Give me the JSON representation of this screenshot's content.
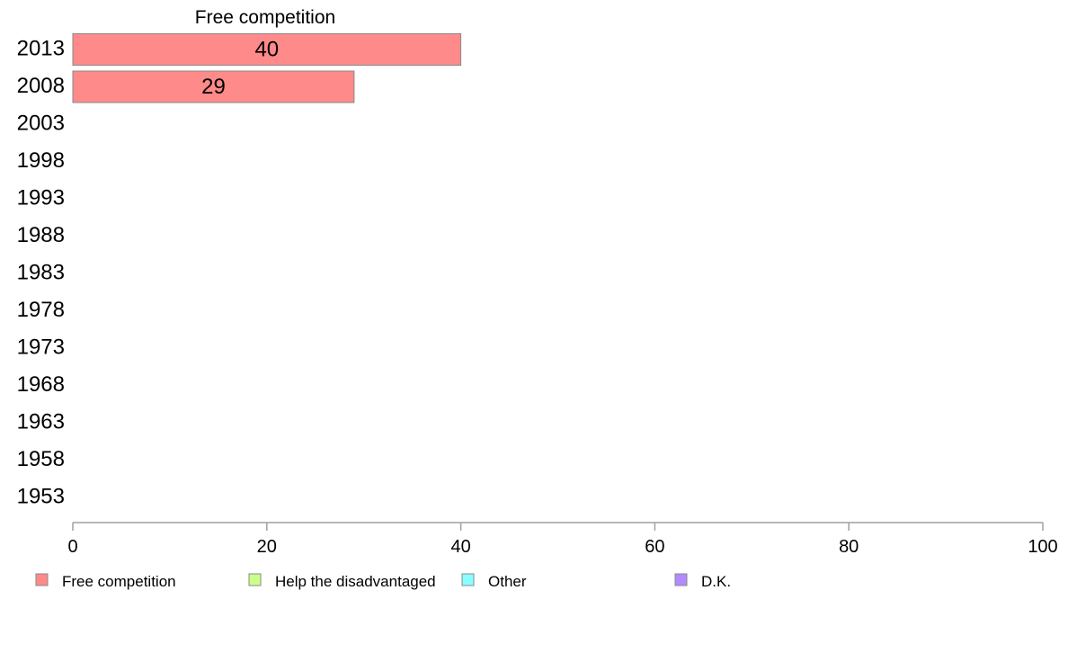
{
  "chart_data": {
    "type": "bar",
    "orientation": "horizontal",
    "title": "Free competition",
    "categories": [
      "2013",
      "2008",
      "2003",
      "1998",
      "1993",
      "1988",
      "1983",
      "1978",
      "1973",
      "1968",
      "1963",
      "1958",
      "1953"
    ],
    "series": [
      {
        "name": "Free competition",
        "color": "#ff8a8a",
        "values": [
          40,
          29,
          null,
          null,
          null,
          null,
          null,
          null,
          null,
          null,
          null,
          null,
          null
        ]
      }
    ],
    "xlim": [
      0,
      100
    ],
    "xticks": [
      0,
      20,
      40,
      60,
      80,
      100
    ],
    "grid": false,
    "legend_position": "bottom",
    "legend": [
      {
        "label": "Free competition",
        "color": "#ff8a8a"
      },
      {
        "label": "Help the disadvantaged",
        "color": "#ccff8a"
      },
      {
        "label": "Other",
        "color": "#8affff"
      },
      {
        "label": "D.K.",
        "color": "#b38aff"
      }
    ]
  }
}
